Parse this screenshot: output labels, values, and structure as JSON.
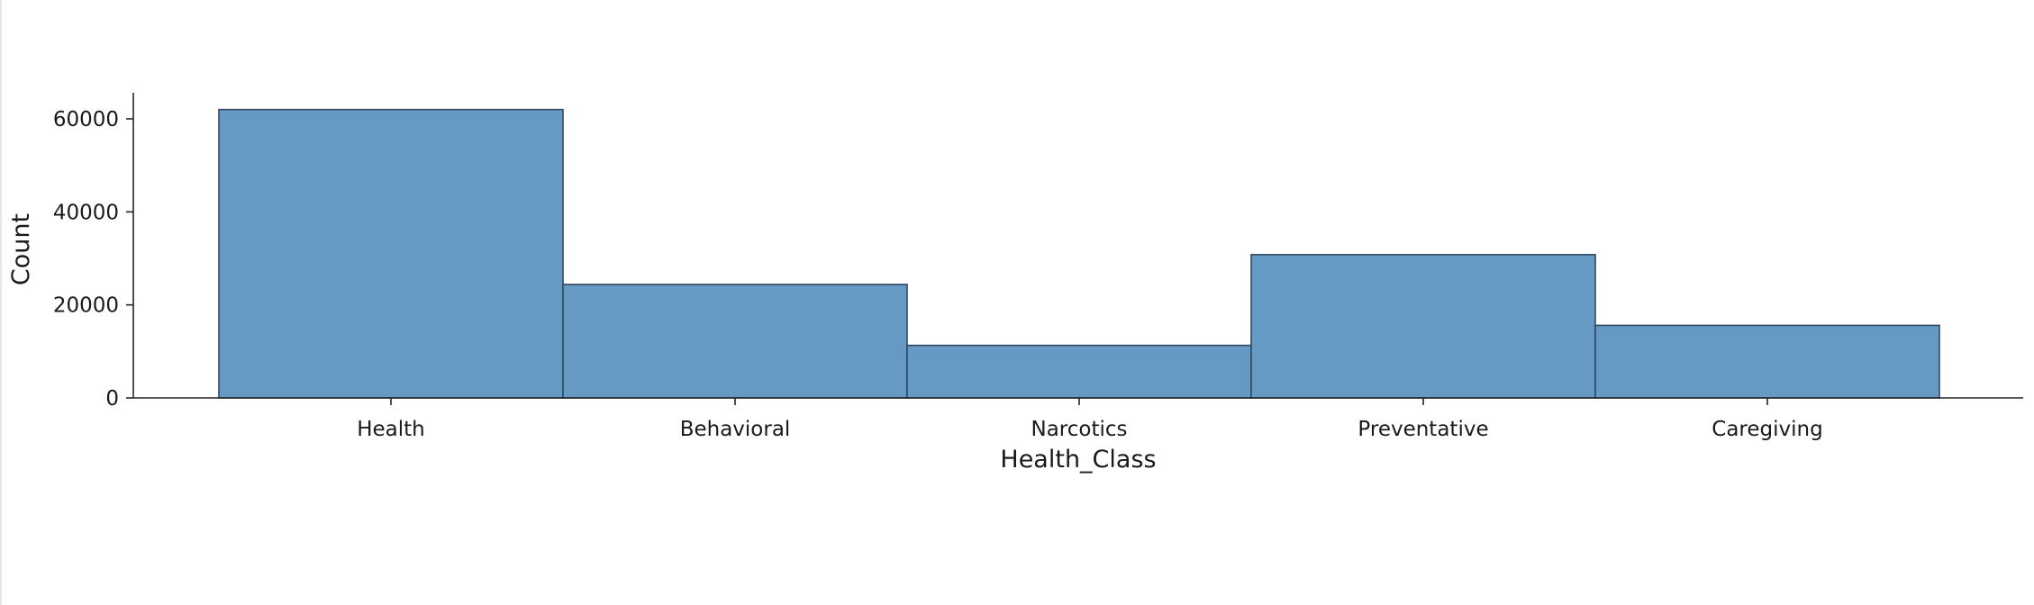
{
  "chart_data": {
    "type": "bar",
    "categories": [
      "Health",
      "Behavioral",
      "Narcotics",
      "Preventative",
      "Caregiving"
    ],
    "values": [
      62000,
      24400,
      11300,
      30800,
      15600
    ],
    "xlabel": "Health_Class",
    "ylabel": "Count",
    "ylim": [
      0,
      65000
    ],
    "yticks": [
      0,
      20000,
      40000,
      60000
    ],
    "ytick_labels": [
      "0",
      "20000",
      "40000",
      "60000"
    ],
    "grid": false,
    "bar_color": "#6699c3",
    "edge_color": "#2f4a60",
    "axis_color": "#262626"
  }
}
